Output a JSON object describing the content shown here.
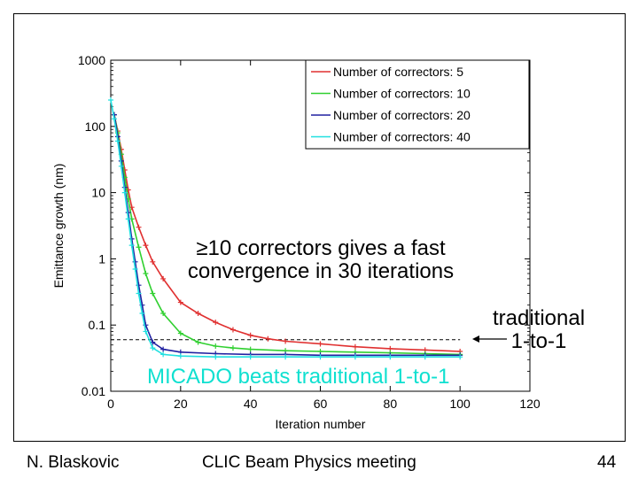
{
  "footer": {
    "author": "N. Blaskovic",
    "meeting": "CLIC Beam Physics meeting",
    "page": "44"
  },
  "annotations": {
    "convergence_line1": "≥10 correctors gives a fast",
    "convergence_line2": "convergence in 30 iterations",
    "traditional_line1": "traditional",
    "traditional_line2": "1-to-1",
    "micado": "MICADO beats traditional 1-to-1"
  },
  "chart_data": {
    "type": "line",
    "xlabel": "Iteration number",
    "ylabel": "Emittance growth (nm)",
    "xlim": [
      0,
      120
    ],
    "ylim": [
      0.01,
      1000
    ],
    "yscale": "log",
    "xticks": [
      "0",
      "20",
      "40",
      "60",
      "80",
      "100",
      "120"
    ],
    "yticks": [
      "0.01",
      "0.1",
      "1",
      "10",
      "100",
      "1000"
    ],
    "grid": false,
    "legend_position": "top-right",
    "reference_line": {
      "y": 0.06,
      "style": "dashed",
      "x_range": [
        0,
        100
      ]
    },
    "series": [
      {
        "name": "Number of correctors: 5",
        "color": "#e03030",
        "x": [
          1,
          2,
          3,
          4,
          5,
          6,
          8,
          10,
          12,
          15,
          20,
          25,
          30,
          35,
          40,
          45,
          50,
          60,
          70,
          80,
          90,
          100
        ],
        "y": [
          150,
          85,
          45,
          22,
          11,
          6,
          3,
          1.6,
          0.9,
          0.5,
          0.22,
          0.15,
          0.11,
          0.085,
          0.07,
          0.062,
          0.057,
          0.052,
          0.047,
          0.044,
          0.042,
          0.04
        ]
      },
      {
        "name": "Number of correctors: 10",
        "color": "#30d030",
        "x": [
          1,
          2,
          3,
          4,
          5,
          6,
          8,
          10,
          12,
          15,
          20,
          25,
          30,
          35,
          40,
          50,
          60,
          70,
          80,
          90,
          100
        ],
        "y": [
          150,
          80,
          38,
          17,
          8,
          4,
          1.5,
          0.6,
          0.3,
          0.15,
          0.075,
          0.055,
          0.048,
          0.045,
          0.043,
          0.041,
          0.04,
          0.039,
          0.038,
          0.037,
          0.036
        ]
      },
      {
        "name": "Number of correctors: 20",
        "color": "#2020a0",
        "x": [
          1,
          2,
          3,
          4,
          5,
          6,
          7,
          8,
          9,
          10,
          12,
          15,
          20,
          30,
          40,
          50,
          60,
          70,
          80,
          90,
          100
        ],
        "y": [
          150,
          70,
          30,
          12,
          5,
          2,
          0.9,
          0.4,
          0.2,
          0.1,
          0.055,
          0.043,
          0.039,
          0.037,
          0.036,
          0.036,
          0.035,
          0.035,
          0.035,
          0.035,
          0.035
        ]
      },
      {
        "name": "Number of correctors: 40",
        "color": "#20e0e0",
        "x": [
          0,
          1,
          2,
          3,
          4,
          5,
          6,
          7,
          8,
          9,
          10,
          12,
          15,
          20,
          30,
          40,
          50,
          60,
          70,
          80,
          90,
          100
        ],
        "y": [
          250,
          130,
          60,
          25,
          10,
          4,
          1.6,
          0.7,
          0.3,
          0.15,
          0.08,
          0.045,
          0.036,
          0.034,
          0.033,
          0.033,
          0.033,
          0.033,
          0.033,
          0.033,
          0.033,
          0.033
        ]
      }
    ]
  }
}
